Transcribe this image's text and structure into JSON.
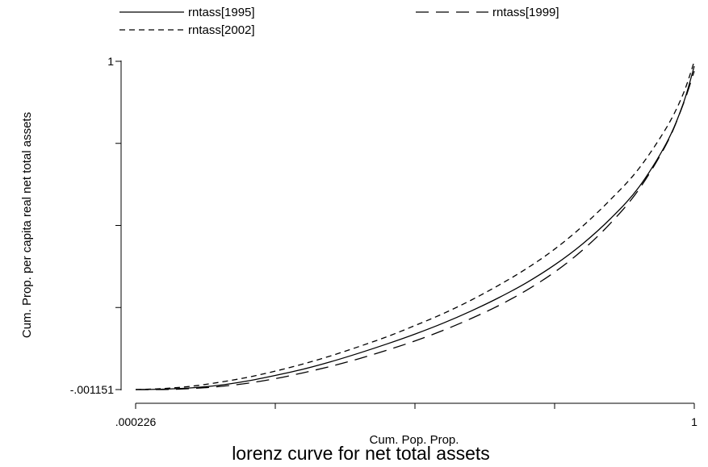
{
  "chart_data": {
    "type": "line",
    "title": "lorenz curve for net total assets",
    "xlabel": "Cum. Pop. Prop.",
    "ylabel": "Cum. Prop. per capita real net total assets",
    "xlim": [
      0.000226,
      1
    ],
    "ylim": [
      -0.001151,
      1
    ],
    "x_tick_labels": [
      ".000226",
      "1"
    ],
    "y_tick_labels": [
      "-.001151",
      "1"
    ],
    "grid": false,
    "legend_position": "top",
    "series": [
      {
        "name": "rntass[1995]",
        "dash": "solid",
        "x": [
          0.000226,
          0.05,
          0.1,
          0.15,
          0.2,
          0.25,
          0.3,
          0.35,
          0.4,
          0.45,
          0.5,
          0.55,
          0.6,
          0.65,
          0.7,
          0.75,
          0.8,
          0.85,
          0.9,
          0.95,
          0.98,
          1
        ],
        "y": [
          -0.001151,
          0.0,
          0.004,
          0.012,
          0.025,
          0.042,
          0.061,
          0.084,
          0.11,
          0.138,
          0.168,
          0.201,
          0.238,
          0.279,
          0.325,
          0.379,
          0.443,
          0.52,
          0.614,
          0.75,
          0.87,
          0.985
        ]
      },
      {
        "name": "rntass[1999]",
        "dash": "longdash",
        "x": [
          0.000226,
          0.05,
          0.1,
          0.15,
          0.2,
          0.25,
          0.3,
          0.35,
          0.4,
          0.45,
          0.5,
          0.55,
          0.6,
          0.65,
          0.7,
          0.75,
          0.8,
          0.85,
          0.9,
          0.95,
          0.98,
          1
        ],
        "y": [
          -0.001151,
          -0.001,
          0.002,
          0.008,
          0.018,
          0.032,
          0.05,
          0.07,
          0.093,
          0.119,
          0.147,
          0.179,
          0.215,
          0.255,
          0.302,
          0.357,
          0.424,
          0.506,
          0.607,
          0.747,
          0.868,
          0.97
        ]
      },
      {
        "name": "rntass[2002]",
        "dash": "shortdash",
        "x": [
          0.000226,
          0.05,
          0.1,
          0.15,
          0.2,
          0.25,
          0.3,
          0.35,
          0.4,
          0.45,
          0.5,
          0.55,
          0.6,
          0.65,
          0.7,
          0.75,
          0.8,
          0.85,
          0.9,
          0.95,
          0.98,
          1
        ],
        "y": [
          -0.001151,
          0.002,
          0.009,
          0.021,
          0.036,
          0.055,
          0.077,
          0.102,
          0.13,
          0.16,
          0.194,
          0.23,
          0.271,
          0.317,
          0.368,
          0.427,
          0.497,
          0.578,
          0.671,
          0.797,
          0.9,
          1.0
        ]
      }
    ]
  }
}
